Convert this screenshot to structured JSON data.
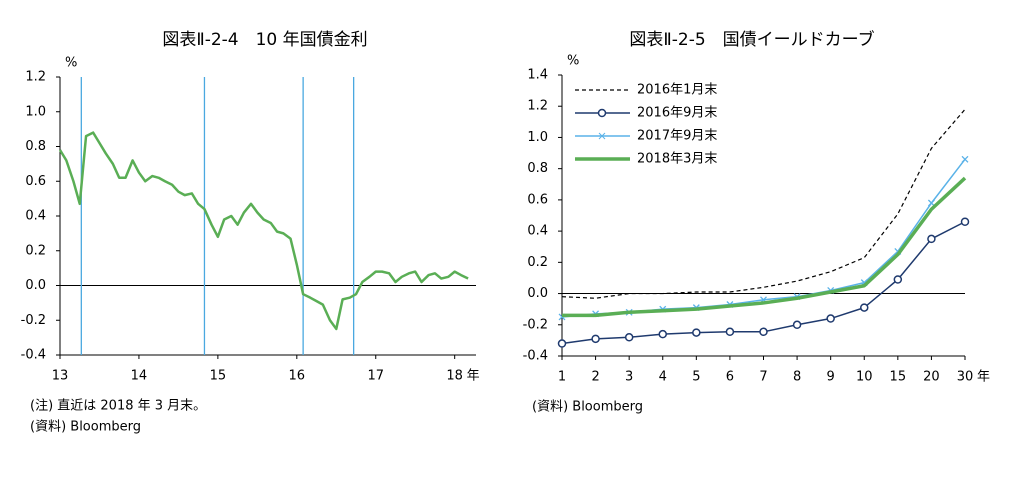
{
  "chart_data": [
    {
      "type": "line",
      "title": "図表Ⅱ-2-4　10 年国債金利",
      "y_unit": "%",
      "x_unit": "年",
      "notes": [
        "(注) 直近は 2018 年 3 月末。",
        "(資料) Bloomberg"
      ],
      "x": [
        13,
        13.08,
        13.17,
        13.25,
        13.33,
        13.42,
        13.5,
        13.58,
        13.67,
        13.75,
        13.83,
        13.92,
        14,
        14.08,
        14.17,
        14.25,
        14.33,
        14.42,
        14.5,
        14.58,
        14.67,
        14.75,
        14.83,
        14.92,
        15,
        15.08,
        15.17,
        15.25,
        15.33,
        15.42,
        15.5,
        15.58,
        15.67,
        15.75,
        15.83,
        15.92,
        16,
        16.08,
        16.17,
        16.25,
        16.33,
        16.42,
        16.5,
        16.58,
        16.67,
        16.75,
        16.83,
        16.92,
        17,
        17.08,
        17.17,
        17.25,
        17.33,
        17.42,
        17.5,
        17.58,
        17.67,
        17.75,
        17.83,
        17.92,
        18,
        18.08,
        18.17
      ],
      "series": [
        {
          "name": "10年国債金利",
          "color": "#5aae55",
          "values": [
            0.78,
            0.72,
            0.6,
            0.47,
            0.86,
            0.88,
            0.82,
            0.76,
            0.7,
            0.62,
            0.62,
            0.72,
            0.65,
            0.6,
            0.63,
            0.62,
            0.6,
            0.58,
            0.54,
            0.52,
            0.53,
            0.47,
            0.44,
            0.35,
            0.28,
            0.38,
            0.4,
            0.35,
            0.42,
            0.47,
            0.42,
            0.38,
            0.36,
            0.31,
            0.3,
            0.27,
            0.12,
            -0.05,
            -0.07,
            -0.09,
            -0.11,
            -0.2,
            -0.25,
            -0.08,
            -0.07,
            -0.05,
            0.02,
            0.05,
            0.08,
            0.08,
            0.07,
            0.02,
            0.05,
            0.07,
            0.08,
            0.02,
            0.06,
            0.07,
            0.04,
            0.05,
            0.08,
            0.06,
            0.04
          ]
        }
      ],
      "vlines": [
        13.27,
        14.83,
        16.08,
        16.72
      ],
      "vline_color": "#4aa8e0",
      "xlim": [
        13,
        18.27
      ],
      "xticks": [
        13,
        14,
        15,
        16,
        17,
        18
      ],
      "ylim": [
        -0.4,
        1.2
      ],
      "yticks": [
        1.2,
        {
          "value": 1.0,
          "label": "1.0"
        },
        0.8,
        0.6,
        0.4,
        0.2,
        {
          "value": 0,
          "label": "0.0"
        },
        -0.2,
        -0.4
      ]
    },
    {
      "type": "line",
      "title": "図表Ⅱ-2-5　国債イールドカーブ",
      "y_unit": "%",
      "x_unit": "年",
      "notes": [
        "(資料) Bloomberg"
      ],
      "categories": [
        "1",
        "2",
        "3",
        "4",
        "5",
        "6",
        "7",
        "8",
        "9",
        "10",
        "15",
        "20",
        "30"
      ],
      "legend": "upper left",
      "series": [
        {
          "name": "2016年1月末",
          "color": "#000000",
          "dash": true,
          "marker": "none",
          "width": 1.2,
          "values": [
            -0.02,
            -0.03,
            0.0,
            0.0,
            0.01,
            0.01,
            0.04,
            0.08,
            0.14,
            0.23,
            0.51,
            0.93,
            1.18
          ]
        },
        {
          "name": "2016年9月末",
          "color": "#1f3a6e",
          "dash": false,
          "marker": "circle",
          "width": 1.5,
          "values": [
            -0.32,
            -0.29,
            -0.28,
            -0.26,
            -0.25,
            -0.245,
            -0.245,
            -0.2,
            -0.16,
            -0.09,
            0.09,
            0.35,
            0.46
          ]
        },
        {
          "name": "2017年9月末",
          "color": "#5ab2e8",
          "dash": false,
          "marker": "x",
          "width": 1.5,
          "values": [
            -0.15,
            -0.13,
            -0.12,
            -0.1,
            -0.09,
            -0.07,
            -0.04,
            -0.02,
            0.02,
            0.07,
            0.27,
            0.58,
            0.86
          ]
        },
        {
          "name": "2018年3月末",
          "color": "#5aae55",
          "dash": false,
          "marker": "none",
          "width": 3.5,
          "values": [
            -0.14,
            -0.14,
            -0.12,
            -0.11,
            -0.1,
            -0.08,
            -0.06,
            -0.03,
            0.01,
            0.05,
            0.25,
            0.54,
            0.74
          ]
        }
      ],
      "ylim": [
        -0.4,
        1.4
      ],
      "yticks": [
        1.4,
        1.2,
        {
          "value": 1.0,
          "label": "1.0"
        },
        0.8,
        0.6,
        0.4,
        0.2,
        {
          "value": 0,
          "label": "0.0"
        },
        -0.2,
        -0.4
      ]
    }
  ]
}
